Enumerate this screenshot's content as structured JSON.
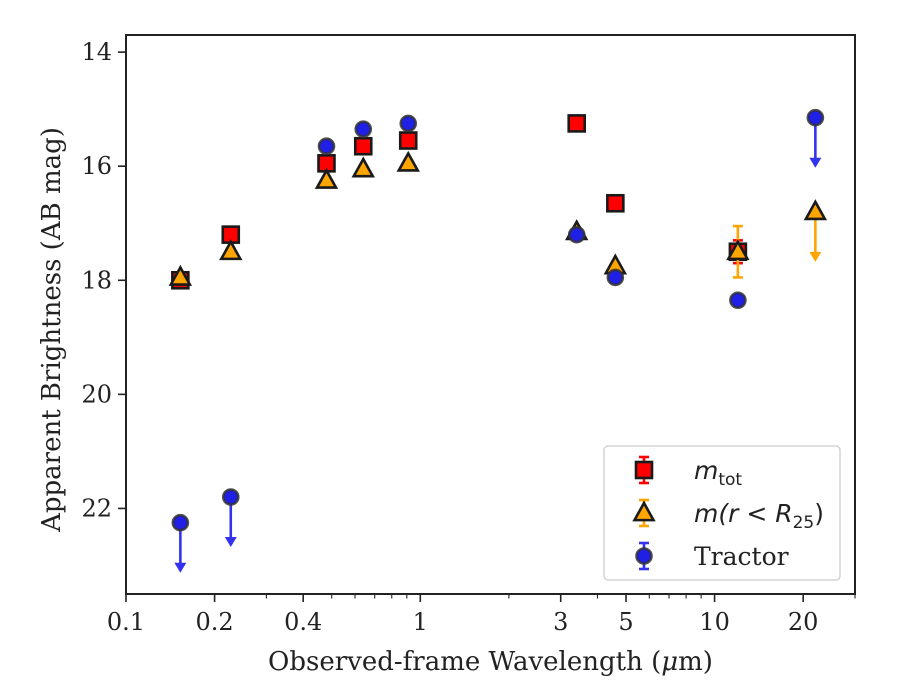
{
  "chart_data": {
    "type": "scatter",
    "xlabel_prefix": "Observed-frame Wavelength (",
    "xlabel_unit_mu": "μ",
    "xlabel_suffix": "m)",
    "ylabel": "Apparent Brightness (AB mag)",
    "x_scale": "log",
    "xlim": [
      0.1,
      30
    ],
    "ylim": [
      23.5,
      13.7
    ],
    "y_inverted": true,
    "x_ticks": [
      0.1,
      0.2,
      0.4,
      1,
      3,
      5,
      10,
      20
    ],
    "x_tick_labels": [
      "0.1",
      "0.2",
      "0.4",
      "1",
      "3",
      "5",
      "10",
      "20"
    ],
    "y_ticks": [
      14,
      16,
      18,
      20,
      22
    ],
    "y_tick_labels": [
      "14",
      "16",
      "18",
      "20",
      "22"
    ],
    "legend_position": "lower-right",
    "series": [
      {
        "key": "mtot",
        "legend_math": "m",
        "legend_sub": "tot",
        "marker": "square",
        "color": "#ff0000",
        "errcolor": "#ff0000",
        "points": [
          {
            "x": 0.153,
            "y": 18.0,
            "err": 0.05
          },
          {
            "x": 0.227,
            "y": 17.2,
            "err": 0.05
          },
          {
            "x": 0.48,
            "y": 15.95,
            "err": 0.05
          },
          {
            "x": 0.64,
            "y": 15.65,
            "err": 0.05
          },
          {
            "x": 0.91,
            "y": 15.55,
            "err": 0.05
          },
          {
            "x": 3.4,
            "y": 15.25,
            "err": 0.05
          },
          {
            "x": 4.6,
            "y": 16.65,
            "err": 0.05
          },
          {
            "x": 12.0,
            "y": 17.5,
            "err": 0.2
          }
        ]
      },
      {
        "key": "mr25",
        "legend_math": "m",
        "legend_rest": "(r < R",
        "legend_sub": "25",
        "legend_close": ")",
        "marker": "triangle",
        "color": "#ffa500",
        "errcolor": "#ffa500",
        "points": [
          {
            "x": 0.153,
            "y": 17.95,
            "err": 0.05
          },
          {
            "x": 0.227,
            "y": 17.5,
            "err": 0.05
          },
          {
            "x": 0.48,
            "y": 16.25,
            "err": 0.05
          },
          {
            "x": 0.64,
            "y": 16.05,
            "err": 0.05
          },
          {
            "x": 0.91,
            "y": 15.95,
            "err": 0.05
          },
          {
            "x": 3.4,
            "y": 17.15,
            "err": 0.05
          },
          {
            "x": 4.6,
            "y": 17.75,
            "err": 0.05
          },
          {
            "x": 12.0,
            "y": 17.5,
            "err": 0.45
          },
          {
            "x": 22.0,
            "y": 16.8,
            "upper_limit": true
          }
        ]
      },
      {
        "key": "tractor",
        "legend_label": "Tractor",
        "marker": "circle",
        "color": "#1f1fe6",
        "errcolor": "#3333ee",
        "points": [
          {
            "x": 0.153,
            "y": 22.25,
            "upper_limit": true
          },
          {
            "x": 0.227,
            "y": 21.8,
            "upper_limit": true
          },
          {
            "x": 0.48,
            "y": 15.65,
            "err": 0.05
          },
          {
            "x": 0.64,
            "y": 15.35,
            "err": 0.05
          },
          {
            "x": 0.91,
            "y": 15.25,
            "err": 0.05
          },
          {
            "x": 3.4,
            "y": 17.2,
            "err": 0.05
          },
          {
            "x": 4.6,
            "y": 17.95,
            "err": 0.05
          },
          {
            "x": 12.0,
            "y": 18.35,
            "err": 0.05
          },
          {
            "x": 22.0,
            "y": 15.15,
            "upper_limit": true
          }
        ]
      }
    ]
  }
}
